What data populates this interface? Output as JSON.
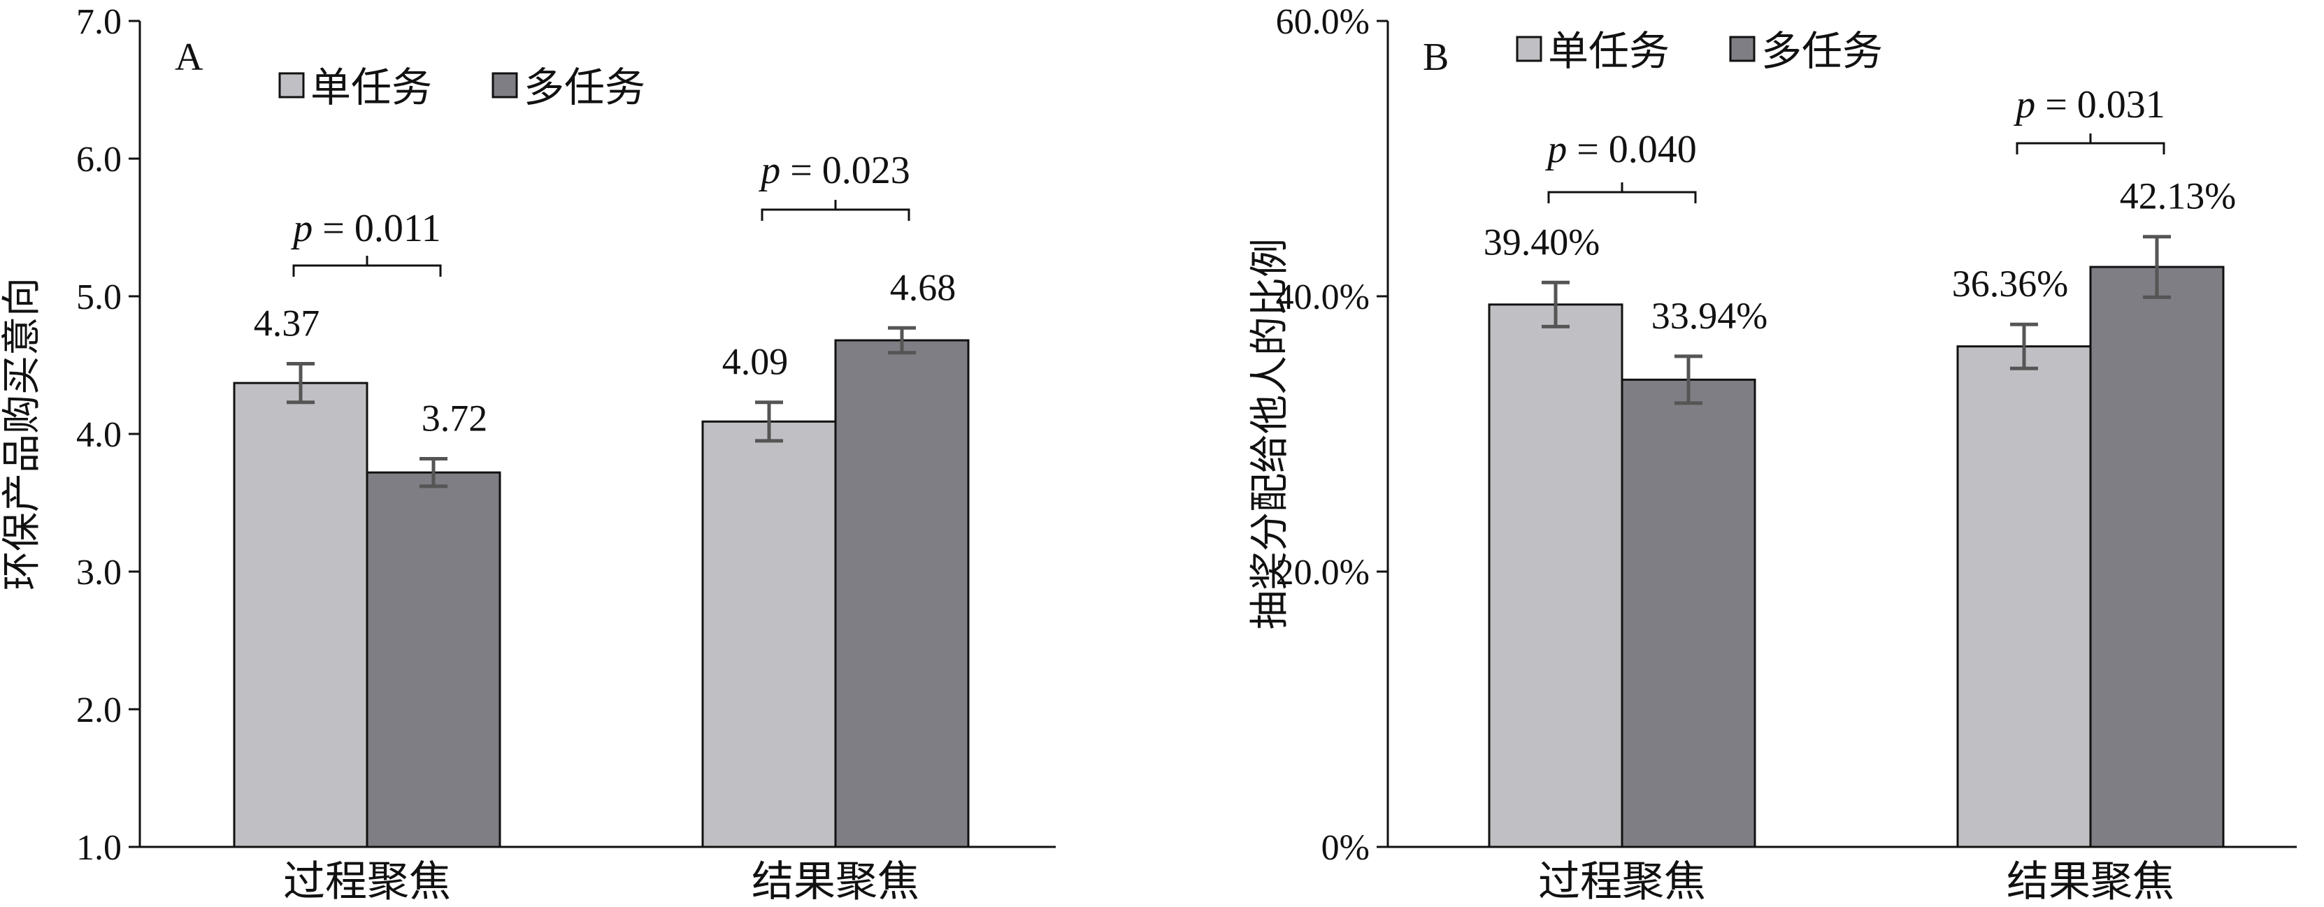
{
  "chart_data": [
    {
      "type": "bar",
      "panel": "A",
      "categories": [
        "过程聚焦",
        "结果聚焦"
      ],
      "series": [
        {
          "name": "单任务",
          "values": [
            4.37,
            4.09
          ],
          "errors": [
            0.14,
            0.14
          ],
          "labels": [
            "4.37",
            "4.09"
          ]
        },
        {
          "name": "多任务",
          "values": [
            3.72,
            4.68
          ],
          "errors": [
            0.1,
            0.09
          ],
          "labels": [
            "3.72",
            "4.68"
          ]
        }
      ],
      "ylabel": "环保产品购买意向",
      "ylim": [
        1.0,
        7.0
      ],
      "yticks": [
        "1.0",
        "2.0",
        "3.0",
        "4.0",
        "5.0",
        "6.0",
        "7.0"
      ],
      "ytick_values": [
        1,
        2,
        3,
        4,
        5,
        6,
        7
      ],
      "annotations": [
        {
          "category": "过程聚焦",
          "p": "= 0.011"
        },
        {
          "category": "结果聚焦",
          "p": "= 0.023"
        }
      ],
      "legend": "top-left",
      "grid": false
    },
    {
      "type": "bar",
      "panel": "B",
      "categories": [
        "过程聚焦",
        "结果聚焦"
      ],
      "series": [
        {
          "name": "单任务",
          "values": [
            39.4,
            36.36
          ],
          "errors": [
            1.6,
            1.6
          ],
          "labels": [
            "39.40%",
            "36.36%"
          ]
        },
        {
          "name": "多任务",
          "values": [
            33.94,
            42.13
          ],
          "errors": [
            1.7,
            2.2
          ],
          "labels": [
            "33.94%",
            "42.13%"
          ]
        }
      ],
      "ylabel": "抽奖分配给他人的比例",
      "ylim": [
        0,
        60
      ],
      "yticks": [
        "0%",
        "20.0%",
        "40.0%",
        "60.0%"
      ],
      "ytick_values": [
        0,
        20,
        40,
        60
      ],
      "annotations": [
        {
          "category": "过程聚焦",
          "p": "= 0.040"
        },
        {
          "category": "结果聚焦",
          "p": "= 0.031"
        }
      ],
      "legend": "top-left",
      "grid": false
    }
  ],
  "colors": {
    "single": "#c0bfc3",
    "multi": "#7f7e84",
    "axis": "#111111",
    "error": "#555555"
  },
  "p_symbol": "p"
}
